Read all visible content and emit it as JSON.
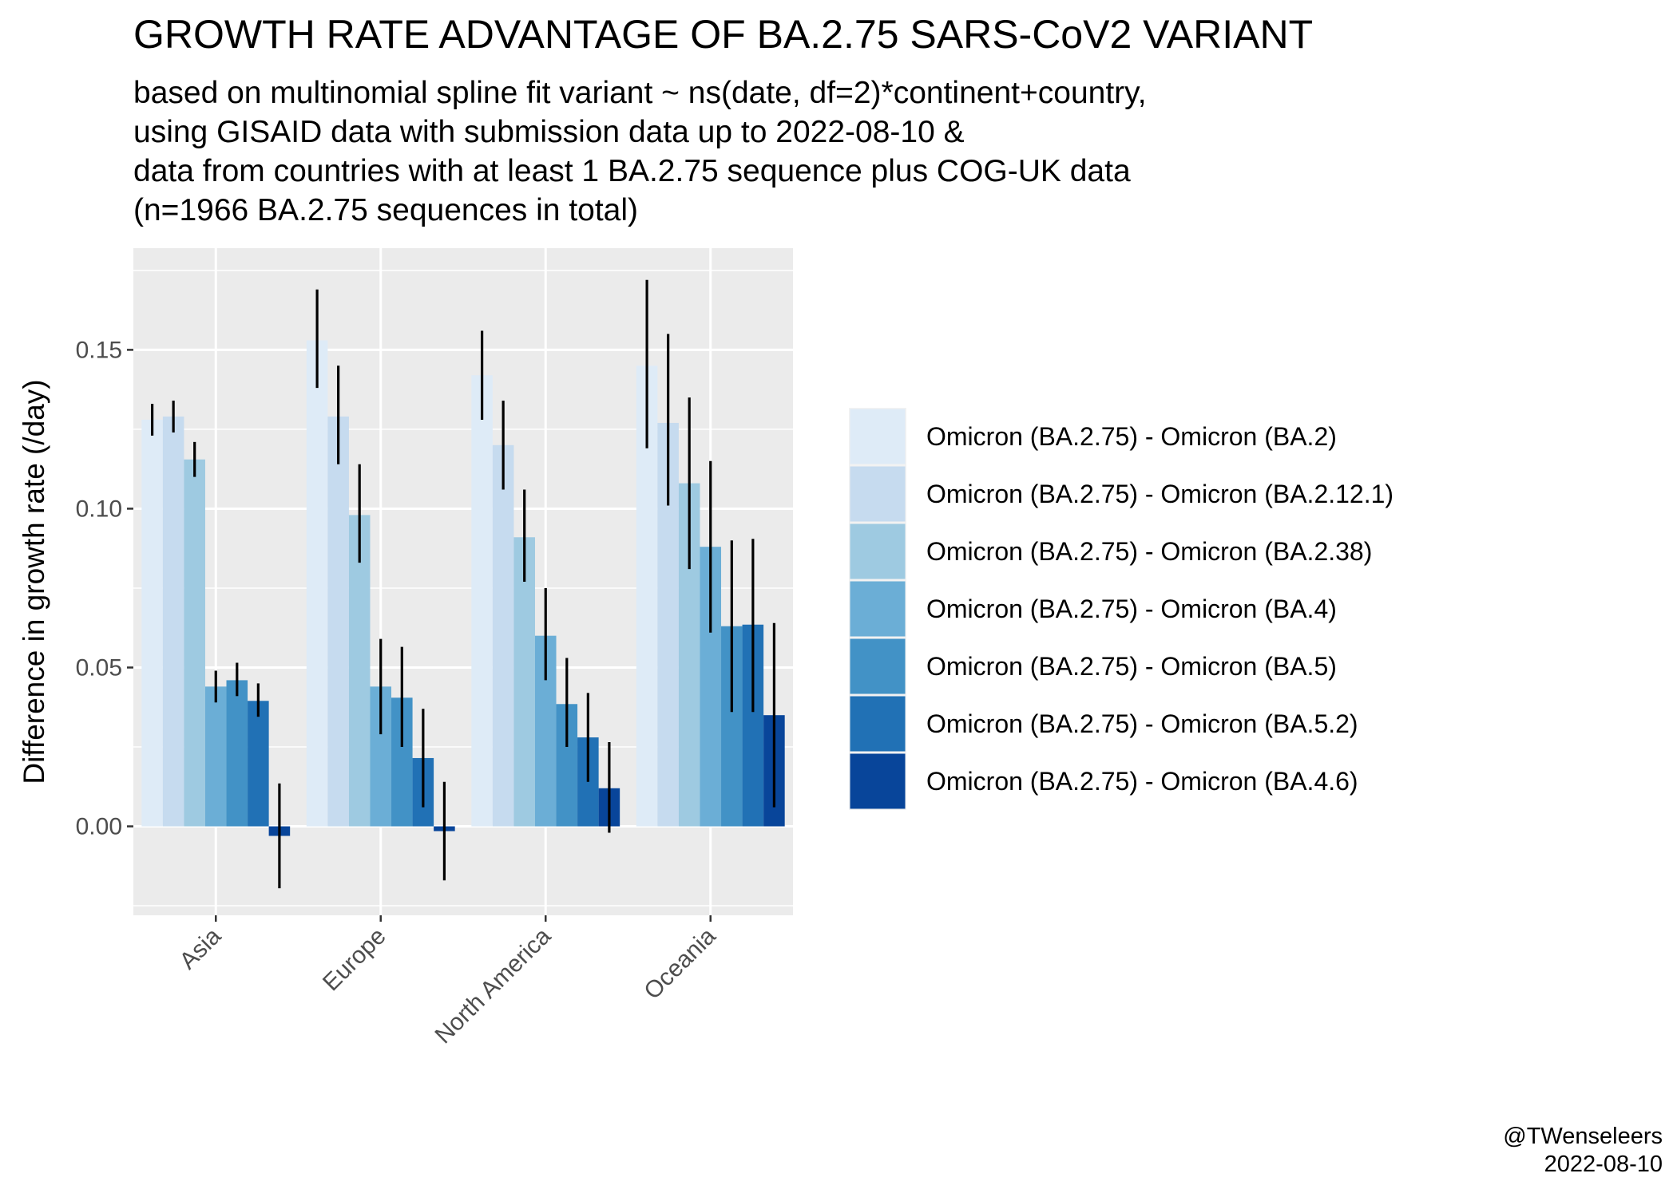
{
  "chart_data": {
    "type": "bar",
    "title": "GROWTH RATE ADVANTAGE OF BA.2.75 SARS-CoV2 VARIANT",
    "subtitle": [
      "based on multinomial spline fit variant ~ ns(date, df=2)*continent+country,",
      "using GISAID data with submission data up to 2022-08-10 &",
      "data from countries with at least 1 BA.2.75 sequence plus COG-UK data",
      "(n=1966 BA.2.75 sequences in total)"
    ],
    "xlabel": "",
    "ylabel": "Difference in growth rate (/day)",
    "ylim": [
      -0.028,
      0.182
    ],
    "yticks": [
      0.0,
      0.05,
      0.1,
      0.15
    ],
    "ytick_labels": [
      "0.00",
      "0.05",
      "0.10",
      "0.15"
    ],
    "grid": true,
    "legend_position": "right",
    "categories": [
      "Asia",
      "Europe",
      "North America",
      "Oceania"
    ],
    "series": [
      {
        "name": "Omicron (BA.2.75) - Omicron (BA.2)",
        "color": "#deebf7",
        "values": [
          0.128,
          0.153,
          0.142,
          0.145
        ],
        "lower": [
          0.123,
          0.138,
          0.128,
          0.119
        ],
        "upper": [
          0.133,
          0.169,
          0.156,
          0.172
        ]
      },
      {
        "name": "Omicron (BA.2.75) - Omicron (BA.2.12.1)",
        "color": "#c6dbef",
        "values": [
          0.129,
          0.129,
          0.12,
          0.127
        ],
        "lower": [
          0.124,
          0.114,
          0.106,
          0.101
        ],
        "upper": [
          0.134,
          0.145,
          0.134,
          0.155
        ]
      },
      {
        "name": "Omicron (BA.2.75) - Omicron (BA.2.38)",
        "color": "#9ecae1",
        "values": [
          0.1155,
          0.098,
          0.091,
          0.108
        ],
        "lower": [
          0.11,
          0.083,
          0.077,
          0.081
        ],
        "upper": [
          0.121,
          0.114,
          0.106,
          0.135
        ]
      },
      {
        "name": "Omicron (BA.2.75) - Omicron (BA.4)",
        "color": "#6baed6",
        "values": [
          0.044,
          0.044,
          0.06,
          0.088
        ],
        "lower": [
          0.039,
          0.029,
          0.046,
          0.061
        ],
        "upper": [
          0.049,
          0.059,
          0.075,
          0.115
        ]
      },
      {
        "name": "Omicron (BA.2.75) - Omicron (BA.5)",
        "color": "#4292c6",
        "values": [
          0.046,
          0.0405,
          0.0385,
          0.063
        ],
        "lower": [
          0.041,
          0.025,
          0.025,
          0.036
        ],
        "upper": [
          0.0515,
          0.0565,
          0.053,
          0.09
        ]
      },
      {
        "name": "Omicron (BA.2.75) - Omicron (BA.5.2)",
        "color": "#2171b5",
        "values": [
          0.0395,
          0.0215,
          0.028,
          0.0635
        ],
        "lower": [
          0.0345,
          0.006,
          0.014,
          0.036
        ],
        "upper": [
          0.045,
          0.037,
          0.042,
          0.0905
        ]
      },
      {
        "name": "Omicron (BA.2.75) - Omicron (BA.4.6)",
        "color": "#08459a",
        "values": [
          -0.003,
          -0.0015,
          0.012,
          0.035
        ],
        "lower": [
          -0.0195,
          -0.017,
          -0.002,
          0.006
        ],
        "upper": [
          0.0135,
          0.014,
          0.0265,
          0.064
        ]
      }
    ]
  },
  "caption": {
    "line1": "@TWenseleers",
    "line2": "2022-08-10"
  }
}
